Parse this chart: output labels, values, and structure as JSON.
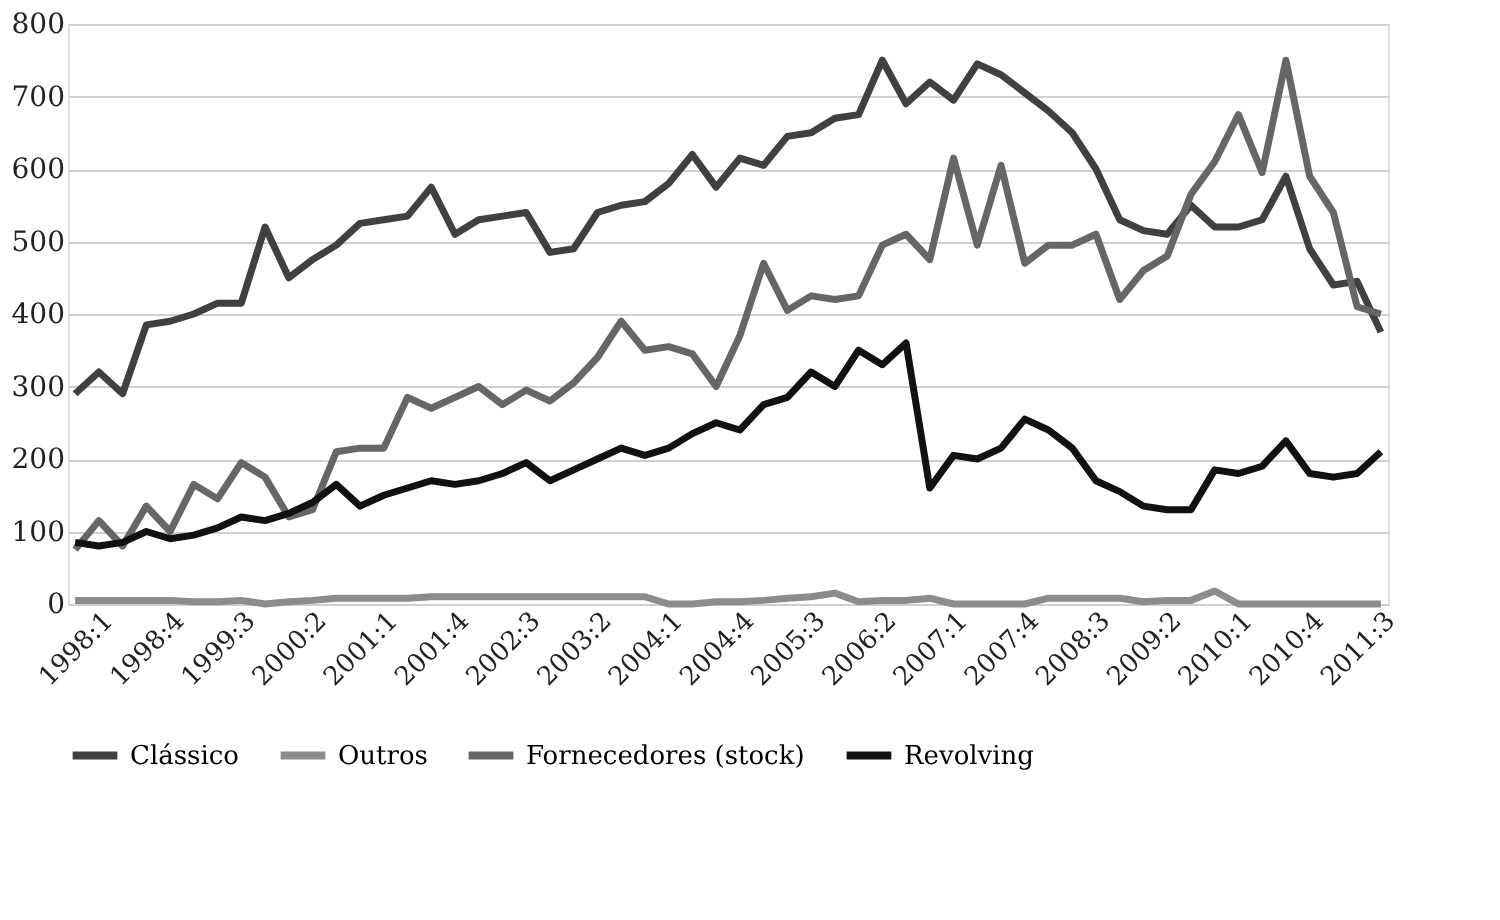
{
  "chart_data": {
    "type": "line",
    "categories": [
      "1998:1",
      null,
      null,
      "1998:4",
      null,
      null,
      "1999:3",
      null,
      null,
      "2000:2",
      null,
      null,
      "2001:1",
      null,
      null,
      "2001:4",
      null,
      null,
      "2002:3",
      null,
      null,
      "2003:2",
      null,
      null,
      "2004:1",
      null,
      null,
      "2004:4",
      null,
      null,
      "2005:3",
      null,
      null,
      "2006:2",
      null,
      null,
      "2007:1",
      null,
      null,
      "2007:4",
      null,
      null,
      "2008:3",
      null,
      null,
      "2009:2",
      null,
      null,
      "2010:1",
      null,
      null,
      "2010:4",
      null,
      null,
      "2011:3",
      null
    ],
    "series": [
      {
        "name": "Clássico",
        "color": "#404040",
        "values": [
          290,
          320,
          290,
          385,
          390,
          400,
          415,
          415,
          520,
          450,
          475,
          495,
          525,
          530,
          535,
          575,
          510,
          530,
          535,
          540,
          485,
          490,
          540,
          550,
          555,
          580,
          620,
          575,
          615,
          605,
          645,
          650,
          670,
          675,
          750,
          690,
          720,
          695,
          745,
          730,
          705,
          680,
          650,
          600,
          530,
          515,
          510,
          550,
          520,
          520,
          530,
          590,
          490,
          440,
          445,
          375
        ]
      },
      {
        "name": "Outros",
        "color": "#8c8c8c",
        "values": [
          5,
          5,
          5,
          5,
          5,
          3,
          3,
          5,
          0,
          3,
          5,
          8,
          8,
          8,
          8,
          10,
          10,
          10,
          10,
          10,
          10,
          10,
          10,
          10,
          10,
          0,
          0,
          3,
          3,
          5,
          8,
          10,
          15,
          3,
          5,
          5,
          8,
          0,
          0,
          0,
          0,
          8,
          8,
          8,
          8,
          3,
          5,
          5,
          18,
          0,
          0,
          0,
          0,
          0,
          0,
          0
        ]
      },
      {
        "name": "Fornecedores (stock)",
        "color": "#666666",
        "values": [
          75,
          115,
          80,
          135,
          100,
          165,
          145,
          195,
          175,
          120,
          130,
          210,
          215,
          215,
          285,
          270,
          285,
          300,
          275,
          295,
          280,
          305,
          340,
          390,
          350,
          355,
          345,
          300,
          370,
          470,
          405,
          425,
          420,
          425,
          495,
          510,
          475,
          615,
          495,
          605,
          470,
          495,
          495,
          510,
          420,
          460,
          480,
          565,
          610,
          675,
          595,
          750,
          590,
          540,
          410,
          400
        ]
      },
      {
        "name": "Revolving",
        "color": "#111111",
        "values": [
          85,
          80,
          85,
          100,
          90,
          95,
          105,
          120,
          115,
          125,
          140,
          165,
          135,
          150,
          160,
          170,
          165,
          170,
          180,
          195,
          170,
          185,
          200,
          215,
          205,
          215,
          235,
          250,
          240,
          275,
          285,
          320,
          300,
          350,
          330,
          360,
          160,
          205,
          200,
          215,
          255,
          240,
          215,
          170,
          155,
          135,
          130,
          130,
          185,
          180,
          190,
          225,
          180,
          175,
          180,
          210
        ]
      }
    ],
    "ylim": [
      0,
      800
    ],
    "yticks": [
      0,
      100,
      200,
      300,
      400,
      500,
      600,
      700,
      800
    ],
    "grid": "y",
    "legend": "bottom",
    "marker": "none",
    "line_style": "solid"
  }
}
